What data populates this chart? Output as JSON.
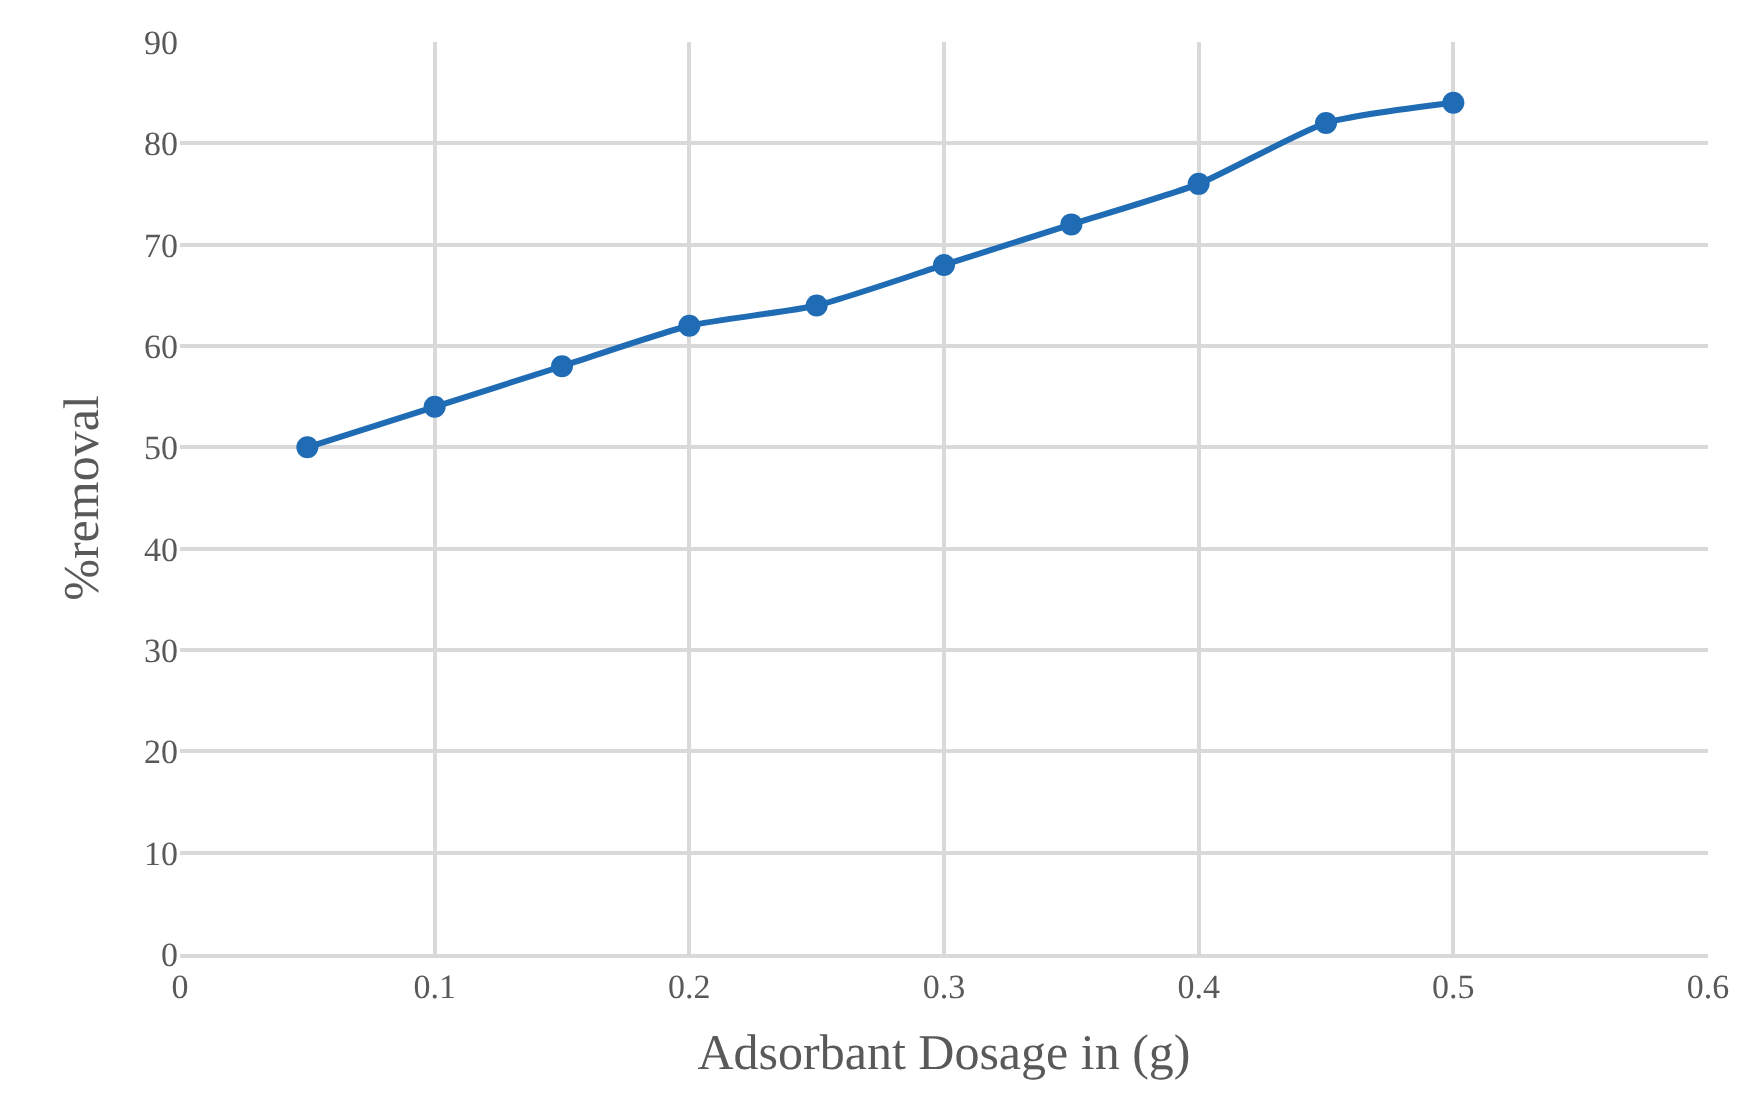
{
  "chart_data": {
    "type": "line",
    "xlabel": "Adsorbant Dosage in (g)",
    "ylabel": "%removal",
    "x": [
      0.05,
      0.1,
      0.15,
      0.2,
      0.25,
      0.3,
      0.35,
      0.4,
      0.45,
      0.5
    ],
    "series": [
      {
        "color": "#1f6cb5",
        "values": [
          50,
          54,
          58,
          62,
          64,
          68,
          72,
          76,
          82,
          84
        ]
      }
    ],
    "xlim": [
      0,
      0.6
    ],
    "xticks": [
      0,
      0.1,
      0.2,
      0.3,
      0.4,
      0.5,
      0.6
    ],
    "ylim": [
      0,
      90
    ],
    "yticks": [
      0,
      10,
      20,
      30,
      40,
      50,
      60,
      70,
      80,
      90
    ],
    "grid": true,
    "marker": "circle",
    "line_style": "solid"
  }
}
